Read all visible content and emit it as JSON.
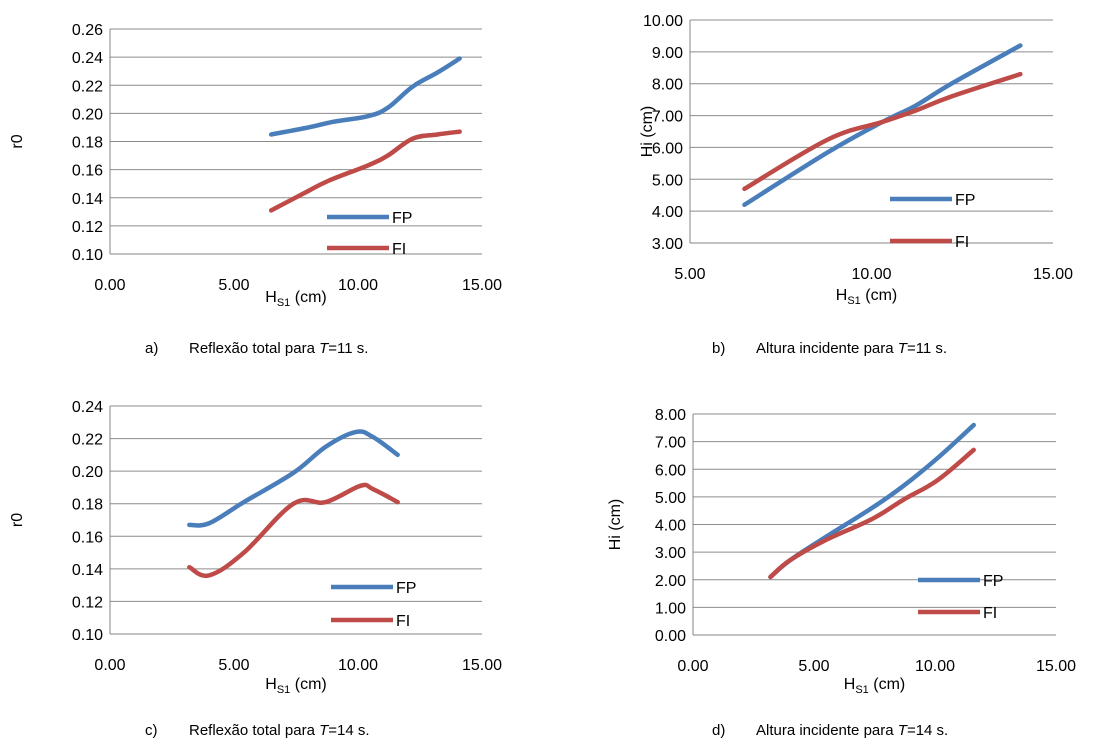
{
  "charts": [
    {
      "caption": {
        "letter": "a)",
        "before": "Reflexão total para ",
        "var": "T",
        "after": "=11 s."
      },
      "chart_data": {
        "type": "line",
        "xlabel_main": "H",
        "xlabel_sub": "S1",
        "xlabel_unit": " (cm)",
        "ylabel": "r0",
        "xlim": [
          0,
          15
        ],
        "ylim": [
          0.1,
          0.26
        ],
        "xticks": [
          0,
          5,
          10,
          15
        ],
        "xtick_labels": [
          "0.00",
          "5.00",
          "10.00",
          "15.00"
        ],
        "yticks": [
          0.1,
          0.12,
          0.14,
          0.16,
          0.18,
          0.2,
          0.22,
          0.24,
          0.26
        ],
        "ytick_labels": [
          "0.10",
          "0.12",
          "0.14",
          "0.16",
          "0.18",
          "0.20",
          "0.22",
          "0.24",
          "0.26"
        ],
        "grid": true,
        "legend": "bottom-right",
        "series": [
          {
            "name": "FP",
            "color": "#4a7ebb",
            "x": [
              6.5,
              8.0,
              9.0,
              10.4,
              11.2,
              12.2,
              13.2,
              14.1
            ],
            "y": [
              0.185,
              0.19,
              0.194,
              0.198,
              0.204,
              0.219,
              0.229,
              0.239
            ]
          },
          {
            "name": "FI",
            "color": "#be4b48",
            "x": [
              6.5,
              7.8,
              8.8,
              10.4,
              11.2,
              12.2,
              13.2,
              14.1
            ],
            "y": [
              0.131,
              0.143,
              0.152,
              0.163,
              0.17,
              0.182,
              0.185,
              0.187
            ]
          }
        ]
      }
    },
    {
      "caption": {
        "letter": "b)",
        "before": "Altura incidente para ",
        "var": "T",
        "after": "=11 s."
      },
      "chart_data": {
        "type": "line",
        "xlabel_main": "H",
        "xlabel_sub": "S1",
        "xlabel_unit": " (cm)",
        "ylabel": "Hi (cm)",
        "xlim": [
          5,
          15
        ],
        "ylim": [
          3,
          10
        ],
        "xticks": [
          5,
          10,
          15
        ],
        "xtick_labels": [
          "5.00",
          "10.00",
          "15.00"
        ],
        "yticks": [
          3,
          4,
          5,
          6,
          7,
          8,
          9,
          10
        ],
        "ytick_labels": [
          "3.00",
          "4.00",
          "5.00",
          "6.00",
          "7.00",
          "8.00",
          "9.00",
          "10.00"
        ],
        "grid": true,
        "legend": "bottom-right",
        "series": [
          {
            "name": "FP",
            "color": "#4a7ebb",
            "x": [
              6.5,
              8.8,
              10.3,
              11.2,
              12.2,
              14.1
            ],
            "y": [
              4.2,
              5.85,
              6.8,
              7.3,
              8.0,
              9.2
            ]
          },
          {
            "name": "FI",
            "color": "#be4b48",
            "x": [
              6.5,
              8.8,
              10.3,
              11.2,
              12.2,
              14.1
            ],
            "y": [
              4.7,
              6.25,
              6.8,
              7.15,
              7.6,
              8.3
            ]
          }
        ]
      }
    },
    {
      "caption": {
        "letter": "c)",
        "before": "Reflexão total para ",
        "var": "T",
        "after": "=14 s."
      },
      "chart_data": {
        "type": "line",
        "xlabel_main": "H",
        "xlabel_sub": "S1",
        "xlabel_unit": " (cm)",
        "ylabel": "r0",
        "xlim": [
          0,
          15
        ],
        "ylim": [
          0.1,
          0.24
        ],
        "xticks": [
          0,
          5,
          10,
          15
        ],
        "xtick_labels": [
          "0.00",
          "5.00",
          "10.00",
          "15.00"
        ],
        "yticks": [
          0.1,
          0.12,
          0.14,
          0.16,
          0.18,
          0.2,
          0.22,
          0.24
        ],
        "ytick_labels": [
          "0.10",
          "0.12",
          "0.14",
          "0.16",
          "0.18",
          "0.20",
          "0.22",
          "0.24"
        ],
        "grid": true,
        "legend": "bottom-right",
        "series": [
          {
            "name": "FP",
            "color": "#4a7ebb",
            "x": [
              3.2,
              4.0,
              5.4,
              7.4,
              8.7,
              9.9,
              10.6,
              11.6
            ],
            "y": [
              0.167,
              0.168,
              0.181,
              0.199,
              0.215,
              0.224,
              0.221,
              0.21
            ]
          },
          {
            "name": "FI",
            "color": "#be4b48",
            "x": [
              3.2,
              4.0,
              5.4,
              7.4,
              8.7,
              10.1,
              10.6,
              11.6
            ],
            "y": [
              0.141,
              0.136,
              0.15,
              0.18,
              0.181,
              0.191,
              0.189,
              0.181
            ]
          }
        ]
      }
    },
    {
      "caption": {
        "letter": "d)",
        "before": "Altura incidente para ",
        "var": "T",
        "after": "=14 s."
      },
      "chart_data": {
        "type": "line",
        "xlabel_main": "H",
        "xlabel_sub": "S1",
        "xlabel_unit": " (cm)",
        "ylabel": "Hi (cm)",
        "xlim": [
          0,
          15
        ],
        "ylim": [
          0,
          8
        ],
        "xticks": [
          0,
          5,
          10,
          15
        ],
        "xtick_labels": [
          "0.00",
          "5.00",
          "10.00",
          "15.00"
        ],
        "yticks": [
          0,
          1,
          2,
          3,
          4,
          5,
          6,
          7,
          8
        ],
        "ytick_labels": [
          "0.00",
          "1.00",
          "2.00",
          "3.00",
          "4.00",
          "5.00",
          "6.00",
          "7.00",
          "8.00"
        ],
        "grid": true,
        "legend": "bottom-right",
        "series": [
          {
            "name": "FP",
            "color": "#4a7ebb",
            "x": [
              3.2,
              4.0,
              5.4,
              7.4,
              8.7,
              10.1,
              11.6
            ],
            "y": [
              2.1,
              2.7,
              3.5,
              4.6,
              5.4,
              6.4,
              7.6
            ]
          },
          {
            "name": "FI",
            "color": "#be4b48",
            "x": [
              3.2,
              4.0,
              5.4,
              7.4,
              8.7,
              10.1,
              11.6
            ],
            "y": [
              2.1,
              2.7,
              3.4,
              4.2,
              4.9,
              5.6,
              6.7
            ]
          }
        ]
      }
    }
  ]
}
